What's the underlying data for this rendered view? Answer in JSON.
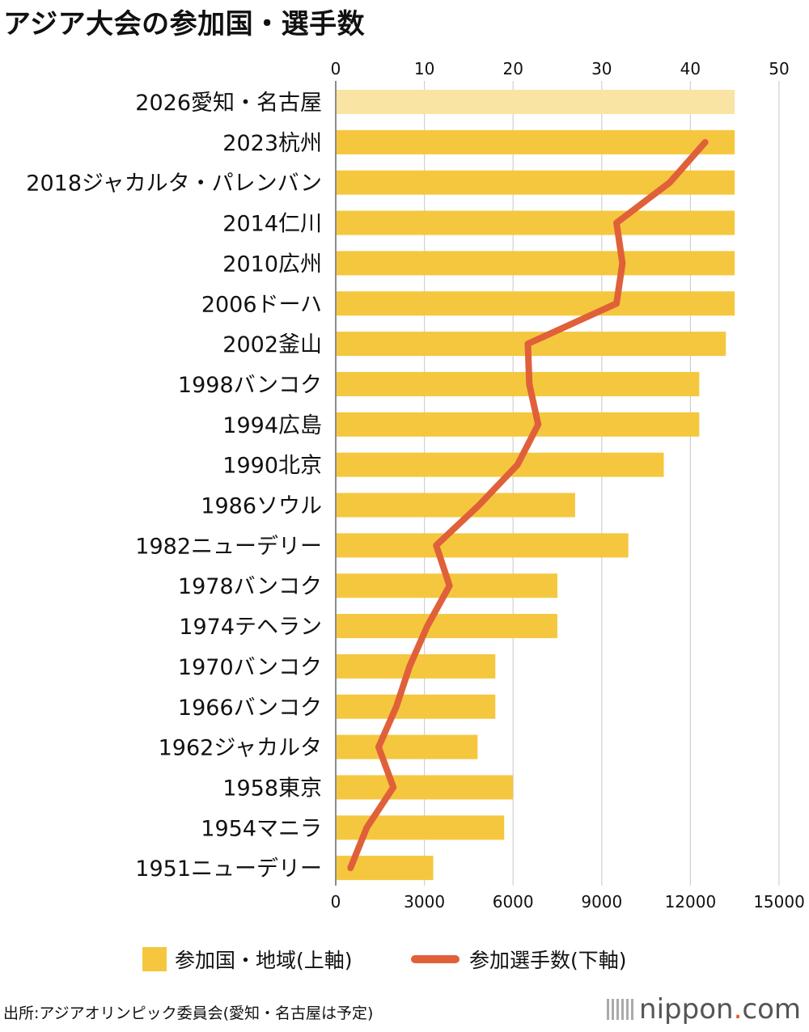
{
  "title": "アジア大会の参加国・選手数",
  "colors": {
    "bar": "#f5c73e",
    "bar_planned": "#f9e4a4",
    "line": "#e0603a",
    "grid": "#d0d0d0"
  },
  "chart_data": {
    "type": "bar+line",
    "orientation": "horizontal",
    "categories": [
      "2026愛知・名古屋",
      "2023杭州",
      "2018ジャカルタ・パレンバン",
      "2014仁川",
      "2010広州",
      "2006ドーハ",
      "2002釜山",
      "1998バンコク",
      "1994広島",
      "1990北京",
      "1986ソウル",
      "1982ニューデリー",
      "1978バンコク",
      "1974テヘラン",
      "1970バンコク",
      "1966バンコク",
      "1962ジャカルタ",
      "1958東京",
      "1954マニラ",
      "1951ニューデリー"
    ],
    "series": [
      {
        "name": "参加国・地域(上軸)",
        "axis": "top",
        "values": [
          45,
          45,
          45,
          45,
          45,
          45,
          44,
          41,
          41,
          37,
          27,
          33,
          25,
          25,
          18,
          18,
          16,
          20,
          19,
          11
        ]
      },
      {
        "name": "参加選手数(下軸)",
        "axis": "bottom",
        "values": [
          null,
          12500,
          11300,
          9500,
          9700,
          9500,
          6500,
          6550,
          6850,
          6150,
          4850,
          3400,
          3850,
          3100,
          2500,
          2050,
          1450,
          1950,
          1050,
          500
        ]
      }
    ],
    "top_axis": {
      "range": [
        0,
        50
      ],
      "ticks": [
        "0",
        "10",
        "20",
        "30",
        "40",
        "50"
      ]
    },
    "bottom_axis": {
      "range": [
        0,
        15000
      ],
      "ticks": [
        "0",
        "3000",
        "6000",
        "9000",
        "12000",
        "15000"
      ]
    },
    "grid": true,
    "legend_placement": "bottom-center"
  },
  "legend": {
    "bar_label": "参加国・地域(上軸)",
    "line_label": "参加選手数(下軸)"
  },
  "source": "出所:アジアオリンピック委員会(愛知・名古屋は予定)",
  "logo": {
    "name": "nippon",
    "dot": ".",
    "tld": "com"
  }
}
